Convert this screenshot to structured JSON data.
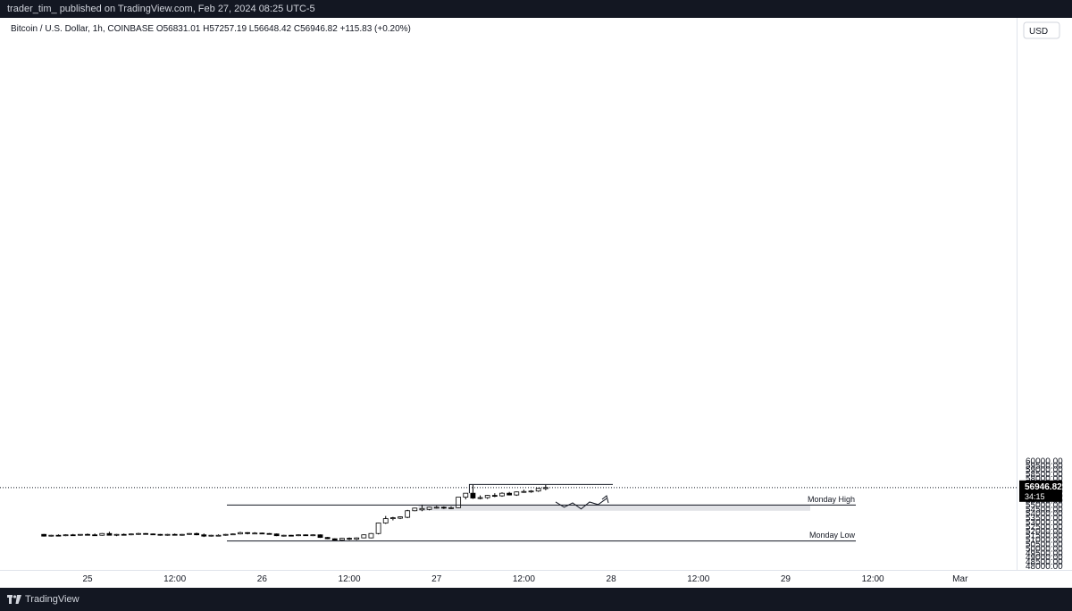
{
  "header": {
    "published_line": "trader_tim_ published on TradingView.com, Feb 27, 2024 08:25 UTC-5"
  },
  "brand": {
    "name": "TradingView"
  },
  "symbol_info": {
    "text": "Bitcoin / U.S. Dollar, 1h, COINBASE  O56831.01  H57257.19  L56648.42  C56946.82  +115.83 (+0.20%)"
  },
  "currency_button": {
    "label": "USD"
  },
  "colors": {
    "up_body": "#ffffff",
    "down_body": "#000000",
    "candle_border": "#000000",
    "zone_fill": "#e1e2e6",
    "price_tag_bg": "#000000",
    "price_tag_text": "#ffffff",
    "axis_text": "#131722"
  },
  "price_tag": {
    "price": "56946.82",
    "countdown": "34:15"
  },
  "chart_data": {
    "type": "candlestick",
    "interval": "1h",
    "symbol": "Bitcoin / U.S. Dollar",
    "exchange": "COINBASE",
    "last": {
      "open": 56831.01,
      "high": 57257.19,
      "low": 56648.42,
      "close": 56946.82,
      "change": 115.83,
      "change_pct": 0.2
    },
    "ylim": [
      48000,
      60000
    ],
    "y_ticks": [
      "48000.00",
      "48500.00",
      "49000.00",
      "49500.00",
      "50000.00",
      "50500.00",
      "51000.00",
      "51500.00",
      "52000.00",
      "52500.00",
      "53000.00",
      "53500.00",
      "54000.00",
      "54500.00",
      "55000.00",
      "55500.00",
      "56000.00",
      "56500.00",
      "57000.00",
      "57500.00",
      "58000.00",
      "58500.00",
      "59000.00",
      "59500.00",
      "60000.00"
    ],
    "x_ticks": [
      {
        "label": "25",
        "t": 0
      },
      {
        "label": "12:00",
        "t": 12
      },
      {
        "label": "26",
        "t": 24
      },
      {
        "label": "12:00",
        "t": 36
      },
      {
        "label": "27",
        "t": 48
      },
      {
        "label": "12:00",
        "t": 60
      },
      {
        "label": "28",
        "t": 72
      },
      {
        "label": "12:00",
        "t": 84
      },
      {
        "label": "29",
        "t": 96
      },
      {
        "label": "12:00",
        "t": 108
      },
      {
        "label": "Mar",
        "t": 120
      }
    ],
    "candles": [
      [
        -6,
        51600,
        51650,
        51350,
        51400
      ],
      [
        -5,
        51400,
        51550,
        51350,
        51500
      ],
      [
        -4,
        51500,
        51600,
        51400,
        51450
      ],
      [
        -3,
        51450,
        51600,
        51400,
        51550
      ],
      [
        -2,
        51550,
        51650,
        51450,
        51500
      ],
      [
        -1,
        51500,
        51620,
        51450,
        51600
      ],
      [
        0,
        51600,
        51700,
        51500,
        51550
      ],
      [
        1,
        51550,
        51700,
        51450,
        51500
      ],
      [
        2,
        51500,
        51750,
        51450,
        51700
      ],
      [
        3,
        51700,
        51900,
        51500,
        51500
      ],
      [
        4,
        51500,
        51650,
        51400,
        51600
      ],
      [
        5,
        51600,
        51700,
        51500,
        51550
      ],
      [
        6,
        51550,
        51700,
        51500,
        51650
      ],
      [
        7,
        51650,
        51780,
        51550,
        51700
      ],
      [
        8,
        51700,
        51750,
        51600,
        51650
      ],
      [
        9,
        51650,
        51700,
        51550,
        51600
      ],
      [
        10,
        51600,
        51650,
        51450,
        51500
      ],
      [
        11,
        51500,
        51650,
        51450,
        51600
      ],
      [
        12,
        51600,
        51700,
        51500,
        51550
      ],
      [
        13,
        51550,
        51650,
        51450,
        51600
      ],
      [
        14,
        51600,
        51750,
        51550,
        51700
      ],
      [
        15,
        51700,
        51800,
        51500,
        51550
      ],
      [
        16,
        51550,
        51700,
        51300,
        51400
      ],
      [
        17,
        51400,
        51550,
        51350,
        51500
      ],
      [
        18,
        51500,
        51600,
        51450,
        51500
      ],
      [
        19,
        51500,
        51650,
        51450,
        51600
      ],
      [
        20,
        51600,
        51700,
        51550,
        51650
      ],
      [
        21,
        51650,
        51900,
        51600,
        51800
      ],
      [
        22,
        51800,
        51850,
        51600,
        51700
      ],
      [
        23,
        51700,
        51850,
        51650,
        51750
      ],
      [
        24,
        51750,
        51800,
        51650,
        51700
      ],
      [
        25,
        51700,
        51750,
        51600,
        51650
      ],
      [
        26,
        51650,
        51700,
        51400,
        51450
      ],
      [
        27,
        51450,
        51550,
        51350,
        51500
      ],
      [
        28,
        51500,
        51550,
        51400,
        51450
      ],
      [
        29,
        51450,
        51600,
        51400,
        51550
      ],
      [
        30,
        51550,
        51600,
        51450,
        51500
      ],
      [
        31,
        51500,
        51600,
        51400,
        51550
      ],
      [
        32,
        51550,
        51600,
        51200,
        51250
      ],
      [
        33,
        51250,
        51300,
        51050,
        51100
      ],
      [
        34,
        51100,
        51150,
        50900,
        50950
      ],
      [
        35,
        50950,
        51200,
        50850,
        51150
      ],
      [
        36,
        51150,
        51250,
        50950,
        51050
      ],
      [
        37,
        51050,
        51250,
        50950,
        51200
      ],
      [
        38,
        51200,
        51600,
        51150,
        51550
      ],
      [
        39,
        51200,
        51750,
        51150,
        51700
      ],
      [
        40,
        51700,
        52950,
        51600,
        52900
      ],
      [
        41,
        52900,
        53700,
        52800,
        53400
      ],
      [
        42,
        53400,
        53600,
        53200,
        53500
      ],
      [
        43,
        53450,
        53650,
        53350,
        53600
      ],
      [
        44,
        53550,
        54400,
        53450,
        54300
      ],
      [
        45,
        54300,
        54650,
        54250,
        54600
      ],
      [
        46,
        54400,
        55000,
        54250,
        54550
      ],
      [
        47,
        54450,
        54750,
        54350,
        54700
      ],
      [
        48,
        54700,
        54850,
        54550,
        54700
      ],
      [
        49,
        54700,
        54800,
        54500,
        54600
      ],
      [
        50,
        54600,
        54800,
        54500,
        54650
      ],
      [
        51,
        54650,
        55850,
        54600,
        55850
      ],
      [
        52,
        55850,
        56250,
        55600,
        56300
      ],
      [
        53,
        56300,
        57250,
        55650,
        55750
      ],
      [
        54,
        55750,
        56050,
        55600,
        55800
      ],
      [
        55,
        55800,
        56100,
        55650,
        56050
      ],
      [
        56,
        56050,
        56300,
        55850,
        56000
      ],
      [
        57,
        56000,
        56400,
        55900,
        56300
      ],
      [
        58,
        56300,
        56450,
        56050,
        56100
      ],
      [
        59,
        56100,
        56500,
        56000,
        56450
      ],
      [
        60,
        56450,
        56700,
        56350,
        56500
      ],
      [
        61,
        56500,
        56650,
        56350,
        56550
      ],
      [
        62,
        56550,
        56900,
        56450,
        56850
      ],
      [
        63,
        56831.01,
        57257.19,
        56648.42,
        56946.82
      ]
    ]
  },
  "annotations": {
    "monday_high": {
      "label": "Monday High",
      "price": 55000
    },
    "monday_low": {
      "label": "Monday Low",
      "price": 50900
    },
    "zone": {
      "from": 54300,
      "to": 55000
    },
    "range_high": {
      "price": 57300
    },
    "projection": [
      [
        55300,
        0
      ],
      [
        54700,
        1
      ],
      [
        55200,
        2
      ],
      [
        54500,
        3
      ],
      [
        55300,
        4
      ],
      [
        55000,
        5
      ],
      [
        55700,
        6
      ]
    ]
  }
}
